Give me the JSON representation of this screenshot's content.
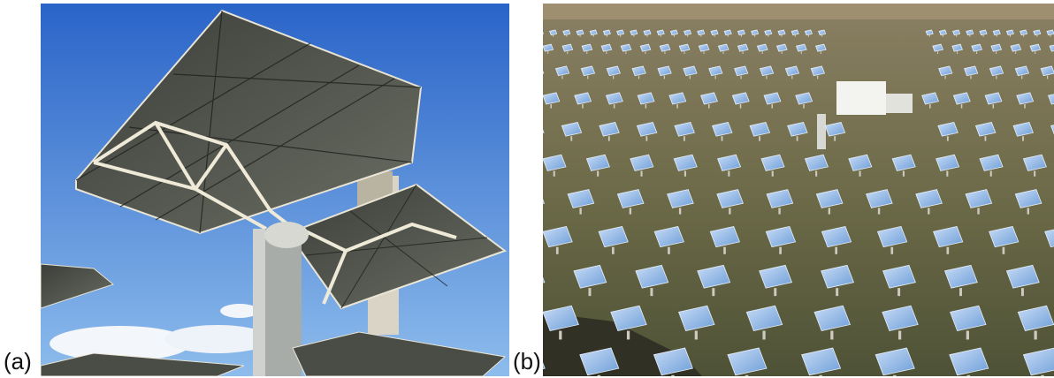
{
  "figure": {
    "panel_a": {
      "label": "(a)",
      "image": "heliostats-closeup-sky-photo"
    },
    "panel_b": {
      "label": "(b)",
      "image": "heliostat-field-aerial-photo"
    }
  },
  "colors": {
    "sky_top": "#2f6fd0",
    "sky_bottom": "#9cc4ee",
    "mirror": "#8fb6e6",
    "ground": "#6f6a4a",
    "frame": "#e8e2d0"
  }
}
